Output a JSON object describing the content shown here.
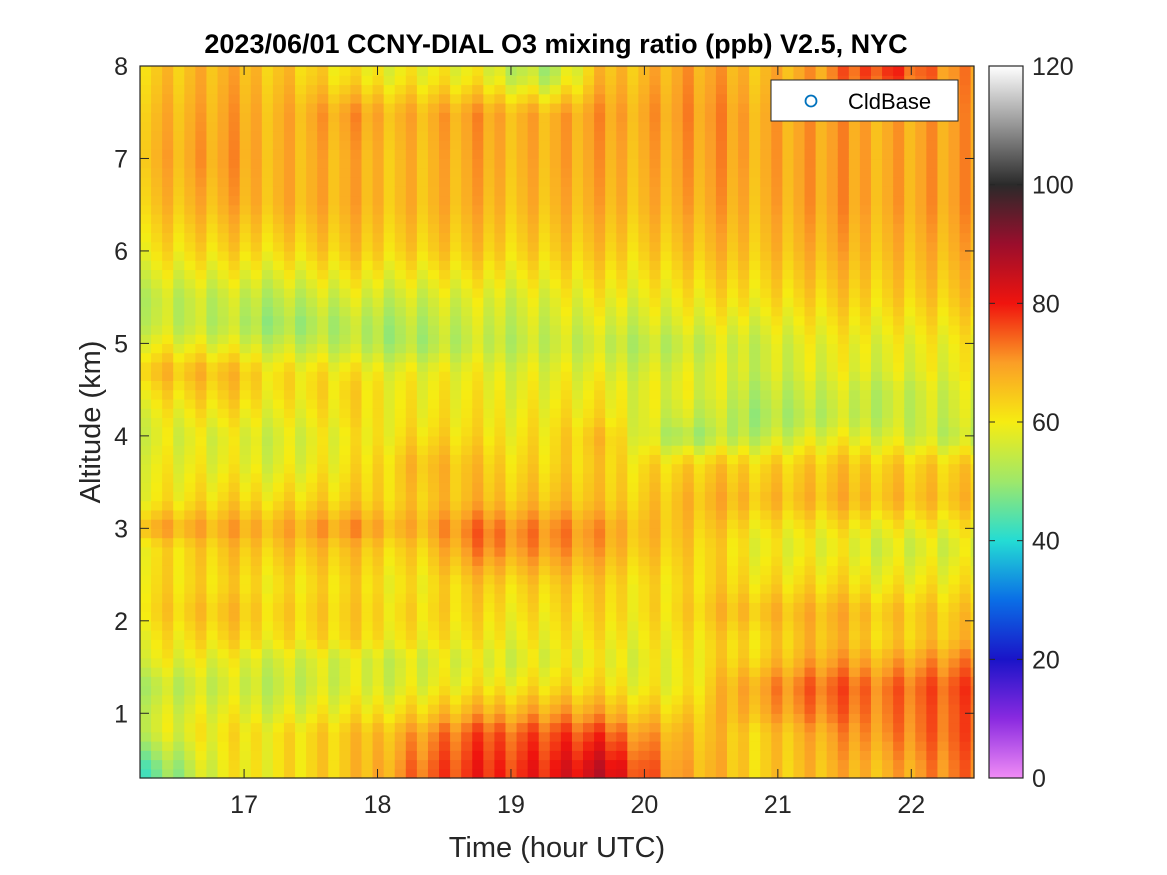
{
  "chart_data": {
    "type": "heatmap",
    "title": "2023/06/01 CCNY-DIAL O3 mixing ratio (ppb) V2.5, NYC",
    "xlabel": "Time (hour UTC)",
    "ylabel": "Altitude (km)",
    "xlim": [
      16.22,
      22.47
    ],
    "ylim": [
      0.3,
      8.0
    ],
    "x_ticks": [
      "17",
      "18",
      "19",
      "20",
      "21",
      "22"
    ],
    "x_tick_values": [
      17,
      18,
      19,
      20,
      21,
      22
    ],
    "y_ticks": [
      "1",
      "2",
      "3",
      "4",
      "5",
      "6",
      "7",
      "8"
    ],
    "y_tick_values": [
      1,
      2,
      3,
      4,
      5,
      6,
      7,
      8
    ],
    "grid": false,
    "colormap": "rainbow: magenta-blue-cyan-green-yellow-orange-red-darkred-black-white",
    "colorbar": {
      "range": [
        0,
        120
      ],
      "ticks": [
        "0",
        "20",
        "40",
        "60",
        "80",
        "100",
        "120"
      ],
      "tick_values": [
        0,
        20,
        40,
        60,
        80,
        100,
        120
      ],
      "stops": [
        {
          "value": 0,
          "color": "#f08cf5"
        },
        {
          "value": 10,
          "color": "#8a2ae0"
        },
        {
          "value": 20,
          "color": "#1a14c8"
        },
        {
          "value": 30,
          "color": "#0a6ee6"
        },
        {
          "value": 40,
          "color": "#24dcd4"
        },
        {
          "value": 50,
          "color": "#9ee86a"
        },
        {
          "value": 60,
          "color": "#f6ec12"
        },
        {
          "value": 70,
          "color": "#fb9e26"
        },
        {
          "value": 80,
          "color": "#f0140e"
        },
        {
          "value": 90,
          "color": "#9a0e2c"
        },
        {
          "value": 100,
          "color": "#2a2a2a"
        },
        {
          "value": 110,
          "color": "#969696"
        },
        {
          "value": 120,
          "color": "#ffffff"
        }
      ]
    },
    "time_range_hours": [
      16.22,
      22.47
    ],
    "time_step_hours": 0.083,
    "altitude_profile_levels_km": [
      0.4,
      0.8,
      1.0,
      1.3,
      1.6,
      1.8,
      2.1,
      2.4,
      2.8,
      3.0,
      3.3,
      3.7,
      4.0,
      4.2,
      4.5,
      4.7,
      5.0,
      5.2,
      5.5,
      6.0,
      6.5,
      7.0,
      7.5,
      7.9
    ],
    "time_profiles": [
      {
        "t": 16.3,
        "o3_ppb": [
          46,
          57,
          57,
          54,
          60,
          61,
          64,
          63,
          62,
          70,
          61,
          60,
          58,
          59,
          63,
          67,
          60,
          56,
          55,
          62,
          66,
          68,
          67,
          65
        ]
      },
      {
        "t": 16.8,
        "o3_ppb": [
          58,
          60,
          58,
          55,
          58,
          62,
          65,
          62,
          64,
          68,
          62,
          58,
          57,
          60,
          64,
          66,
          57,
          53,
          54,
          62,
          67,
          69,
          68,
          67
        ]
      },
      {
        "t": 17.3,
        "o3_ppb": [
          62,
          62,
          58,
          55,
          57,
          62,
          64,
          62,
          66,
          69,
          63,
          58,
          57,
          59,
          62,
          62,
          55,
          51,
          54,
          63,
          68,
          68,
          68,
          66
        ]
      },
      {
        "t": 17.8,
        "o3_ppb": [
          64,
          64,
          60,
          56,
          56,
          62,
          63,
          62,
          65,
          70,
          63,
          60,
          59,
          61,
          62,
          60,
          53,
          52,
          56,
          64,
          67,
          67,
          69,
          60
        ]
      },
      {
        "t": 18.3,
        "o3_ppb": [
          74,
          70,
          64,
          58,
          57,
          61,
          63,
          61,
          64,
          68,
          65,
          67,
          63,
          61,
          60,
          59,
          52,
          53,
          56,
          64,
          67,
          67,
          68,
          60
        ]
      },
      {
        "t": 18.8,
        "o3_ppb": [
          78,
          75,
          68,
          60,
          57,
          60,
          62,
          64,
          72,
          73,
          66,
          64,
          61,
          60,
          59,
          58,
          54,
          55,
          57,
          64,
          67,
          68,
          69,
          58
        ]
      },
      {
        "t": 19.3,
        "o3_ppb": [
          80,
          76,
          70,
          62,
          58,
          60,
          62,
          64,
          71,
          72,
          66,
          63,
          62,
          61,
          59,
          58,
          55,
          56,
          58,
          64,
          67,
          68,
          68,
          52
        ]
      },
      {
        "t": 19.7,
        "o3_ppb": [
          84,
          75,
          68,
          61,
          58,
          60,
          62,
          63,
          68,
          69,
          64,
          63,
          65,
          61,
          59,
          57,
          54,
          56,
          59,
          64,
          67,
          68,
          69,
          66
        ]
      },
      {
        "t": 20.3,
        "o3_ppb": [
          68,
          66,
          63,
          59,
          60,
          61,
          63,
          62,
          64,
          65,
          66,
          63,
          50,
          55,
          58,
          57,
          54,
          57,
          60,
          65,
          68,
          69,
          70,
          69
        ]
      },
      {
        "t": 20.8,
        "o3_ppb": [
          64,
          64,
          68,
          70,
          64,
          63,
          67,
          63,
          60,
          62,
          67,
          64,
          54,
          52,
          54,
          56,
          56,
          58,
          62,
          66,
          68,
          69,
          69,
          67
        ]
      },
      {
        "t": 21.3,
        "o3_ppb": [
          66,
          68,
          72,
          74,
          68,
          66,
          67,
          62,
          58,
          60,
          66,
          64,
          57,
          53,
          55,
          57,
          58,
          60,
          63,
          67,
          69,
          69,
          69,
          69
        ]
      },
      {
        "t": 21.8,
        "o3_ppb": [
          68,
          72,
          73,
          74,
          68,
          64,
          66,
          61,
          57,
          60,
          67,
          65,
          58,
          55,
          55,
          58,
          59,
          61,
          64,
          67,
          69,
          69,
          69,
          79
        ]
      },
      {
        "t": 22.3,
        "o3_ppb": [
          72,
          74,
          74,
          75,
          70,
          65,
          64,
          60,
          56,
          59,
          65,
          63,
          53,
          55,
          56,
          58,
          59,
          61,
          64,
          67,
          69,
          69,
          69,
          70
        ]
      }
    ],
    "legend": {
      "entries": [
        {
          "label": "CldBase",
          "marker": "open-circle",
          "color": "#0072bd"
        }
      ],
      "placement": "top-right"
    },
    "cloud_base_points": []
  }
}
